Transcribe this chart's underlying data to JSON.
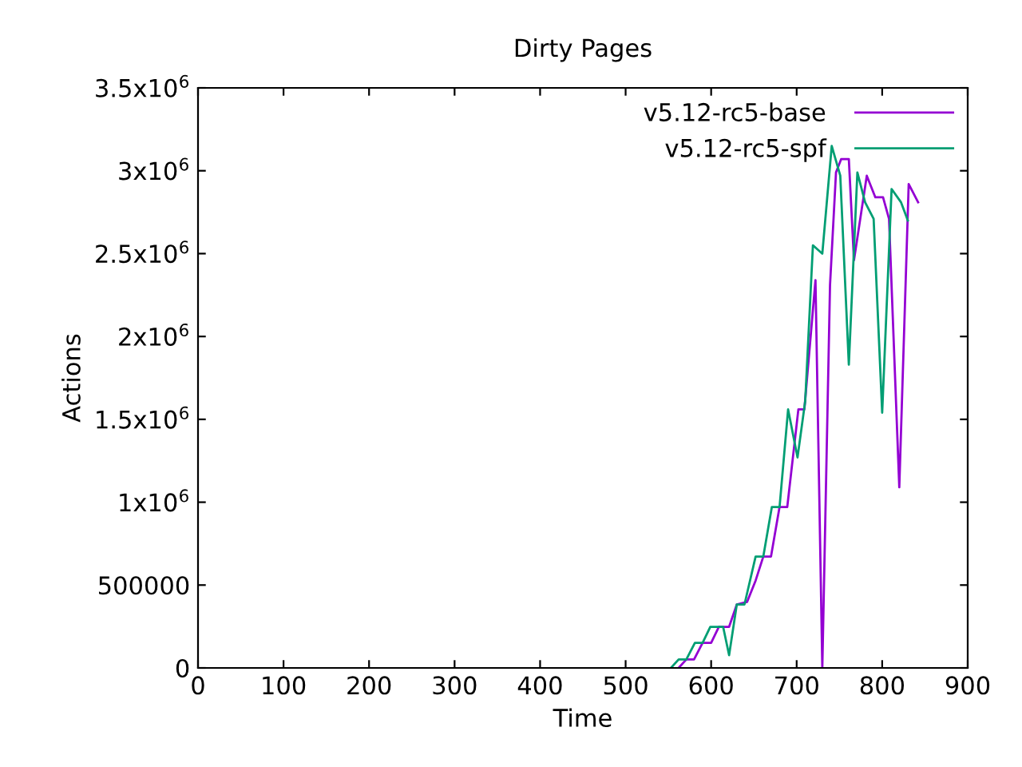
{
  "chart_data": {
    "type": "line",
    "title": "Dirty Pages",
    "xlabel": "Time",
    "ylabel": "Actions",
    "xlim": [
      0,
      900
    ],
    "xticks": [
      0,
      100,
      200,
      300,
      400,
      500,
      600,
      700,
      800,
      900
    ],
    "ylim": [
      0,
      3500000
    ],
    "yticks": [
      0,
      500000,
      {
        "value": 1000000,
        "label": "1x10$^{6}$"
      },
      {
        "value": 1500000,
        "label": "1.5x10$^{6}$"
      },
      {
        "value": 2000000,
        "label": "2x10$^{6}$"
      },
      {
        "value": 2500000,
        "label": "2.5x10$^{6}$"
      },
      {
        "value": 3000000,
        "label": "3x10$^{6}$"
      },
      {
        "value": 3500000,
        "label": "3.5x10$^{6}$"
      }
    ],
    "grid": false,
    "legend": "top right",
    "marker": "none",
    "line_style": "solid",
    "series": [
      {
        "name": "v5.12-rc5-base",
        "color": "#9400d3",
        "x": [
          562,
          571,
          580,
          590,
          600,
          609,
          621,
          630,
          642,
          652,
          661,
          670,
          680,
          689,
          702,
          709,
          722,
          730,
          739,
          746,
          752,
          761,
          767,
          782,
          792,
          801,
          808,
          820,
          831,
          842
        ],
        "values": [
          0,
          51000,
          51000,
          151000,
          151000,
          248000,
          248000,
          383000,
          398000,
          527000,
          672000,
          672000,
          971000,
          971000,
          1560000,
          1560000,
          2340000,
          0,
          2310000,
          2990000,
          3070000,
          3070000,
          2460000,
          2970000,
          2840000,
          2840000,
          2710000,
          1090000,
          2920000,
          2810000
        ]
      },
      {
        "name": "v5.12-rc5-spf",
        "color": "#009e73",
        "x": [
          553,
          562,
          571,
          581,
          590,
          599,
          614,
          621,
          630,
          639,
          652,
          661,
          671,
          680,
          690,
          701,
          710,
          719,
          730,
          741,
          751,
          761,
          771,
          780,
          790,
          800,
          811,
          822,
          830
        ],
        "values": [
          0,
          51000,
          51000,
          151000,
          151000,
          248000,
          248000,
          77000,
          383000,
          383000,
          672000,
          672000,
          971000,
          971000,
          1560000,
          1270000,
          1610000,
          2550000,
          2500000,
          3150000,
          2970000,
          1830000,
          2990000,
          2810000,
          2710000,
          1540000,
          2890000,
          2810000,
          2700000
        ]
      }
    ]
  }
}
